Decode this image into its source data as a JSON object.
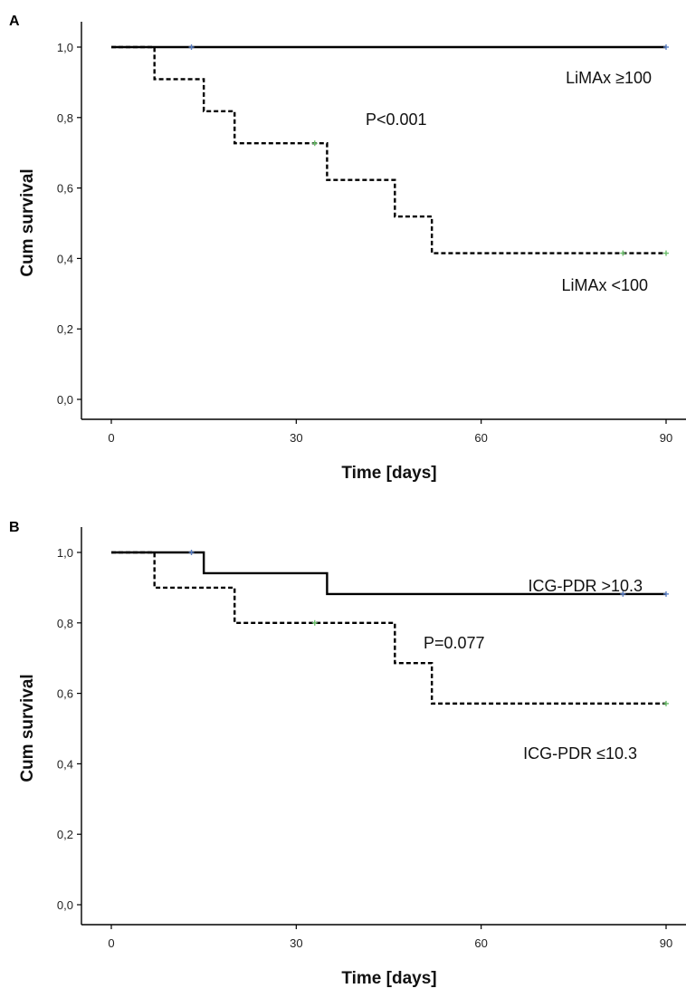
{
  "chart_data": [
    {
      "type": "line",
      "panel_label": "A",
      "xlabel": "Time [days]",
      "ylabel": "Cum survival",
      "xlim": [
        0,
        90
      ],
      "ylim": [
        0,
        1
      ],
      "xticks": [
        0,
        30,
        60,
        90
      ],
      "yticks": [
        0.0,
        0.2,
        0.4,
        0.6,
        0.8,
        1.0
      ],
      "ytick_labels": [
        "0,0",
        "0,2",
        "0,4",
        "0,6",
        "0,8",
        "1,0"
      ],
      "xtick_labels": [
        "0",
        "30",
        "60",
        "90"
      ],
      "grid": false,
      "series": [
        {
          "name": "LiMAx ≥100",
          "style": "solid",
          "color": "#000000",
          "step_x": [
            0,
            90
          ],
          "step_y": [
            1.0,
            1.0
          ],
          "censored": [
            {
              "x": 13,
              "y": 1.0
            },
            {
              "x": 90,
              "y": 1.0
            }
          ],
          "censor_color": "#5b7fc4"
        },
        {
          "name": "LiMAx <100",
          "style": "dashed",
          "color": "#000000",
          "step_x": [
            0,
            7,
            15,
            20,
            35,
            46,
            52,
            90
          ],
          "step_y": [
            1.0,
            0.909,
            0.818,
            0.727,
            0.623,
            0.519,
            0.415,
            0.415
          ],
          "censored": [
            {
              "x": 33,
              "y": 0.727
            },
            {
              "x": 83,
              "y": 0.415
            },
            {
              "x": 90,
              "y": 0.415
            }
          ],
          "censor_color": "#6bbf6b"
        }
      ],
      "annotations": [
        {
          "text": "LiMAx ≥100",
          "series_ref": 0
        },
        {
          "text": "LiMAx <100",
          "series_ref": 1
        },
        {
          "text": "P<0.001"
        }
      ]
    },
    {
      "type": "line",
      "panel_label": "B",
      "xlabel": "Time [days]",
      "ylabel": "Cum survival",
      "xlim": [
        0,
        90
      ],
      "ylim": [
        0,
        1
      ],
      "xticks": [
        0,
        30,
        60,
        90
      ],
      "yticks": [
        0.0,
        0.2,
        0.4,
        0.6,
        0.8,
        1.0
      ],
      "ytick_labels": [
        "0,0",
        "0,2",
        "0,4",
        "0,6",
        "0,8",
        "1,0"
      ],
      "xtick_labels": [
        "0",
        "30",
        "60",
        "90"
      ],
      "grid": false,
      "series": [
        {
          "name": "ICG-PDR >10.3",
          "style": "solid",
          "color": "#000000",
          "step_x": [
            0,
            15,
            35,
            90
          ],
          "step_y": [
            1.0,
            0.941,
            0.882,
            0.882
          ],
          "censored": [
            {
              "x": 13,
              "y": 1.0
            },
            {
              "x": 83,
              "y": 0.882
            },
            {
              "x": 90,
              "y": 0.882
            }
          ],
          "censor_color": "#5b7fc4"
        },
        {
          "name": "ICG-PDR ≤10.3",
          "style": "dashed",
          "color": "#000000",
          "step_x": [
            0,
            7,
            20,
            46,
            52,
            90
          ],
          "step_y": [
            1.0,
            0.9,
            0.8,
            0.686,
            0.571,
            0.571
          ],
          "censored": [
            {
              "x": 33,
              "y": 0.8
            },
            {
              "x": 90,
              "y": 0.571
            }
          ],
          "censor_color": "#6bbf6b"
        }
      ],
      "annotations": [
        {
          "text": "ICG-PDR >10.3",
          "series_ref": 0
        },
        {
          "text": "ICG-PDR ≤10.3",
          "series_ref": 1
        },
        {
          "text": "P=0.077"
        }
      ]
    }
  ]
}
